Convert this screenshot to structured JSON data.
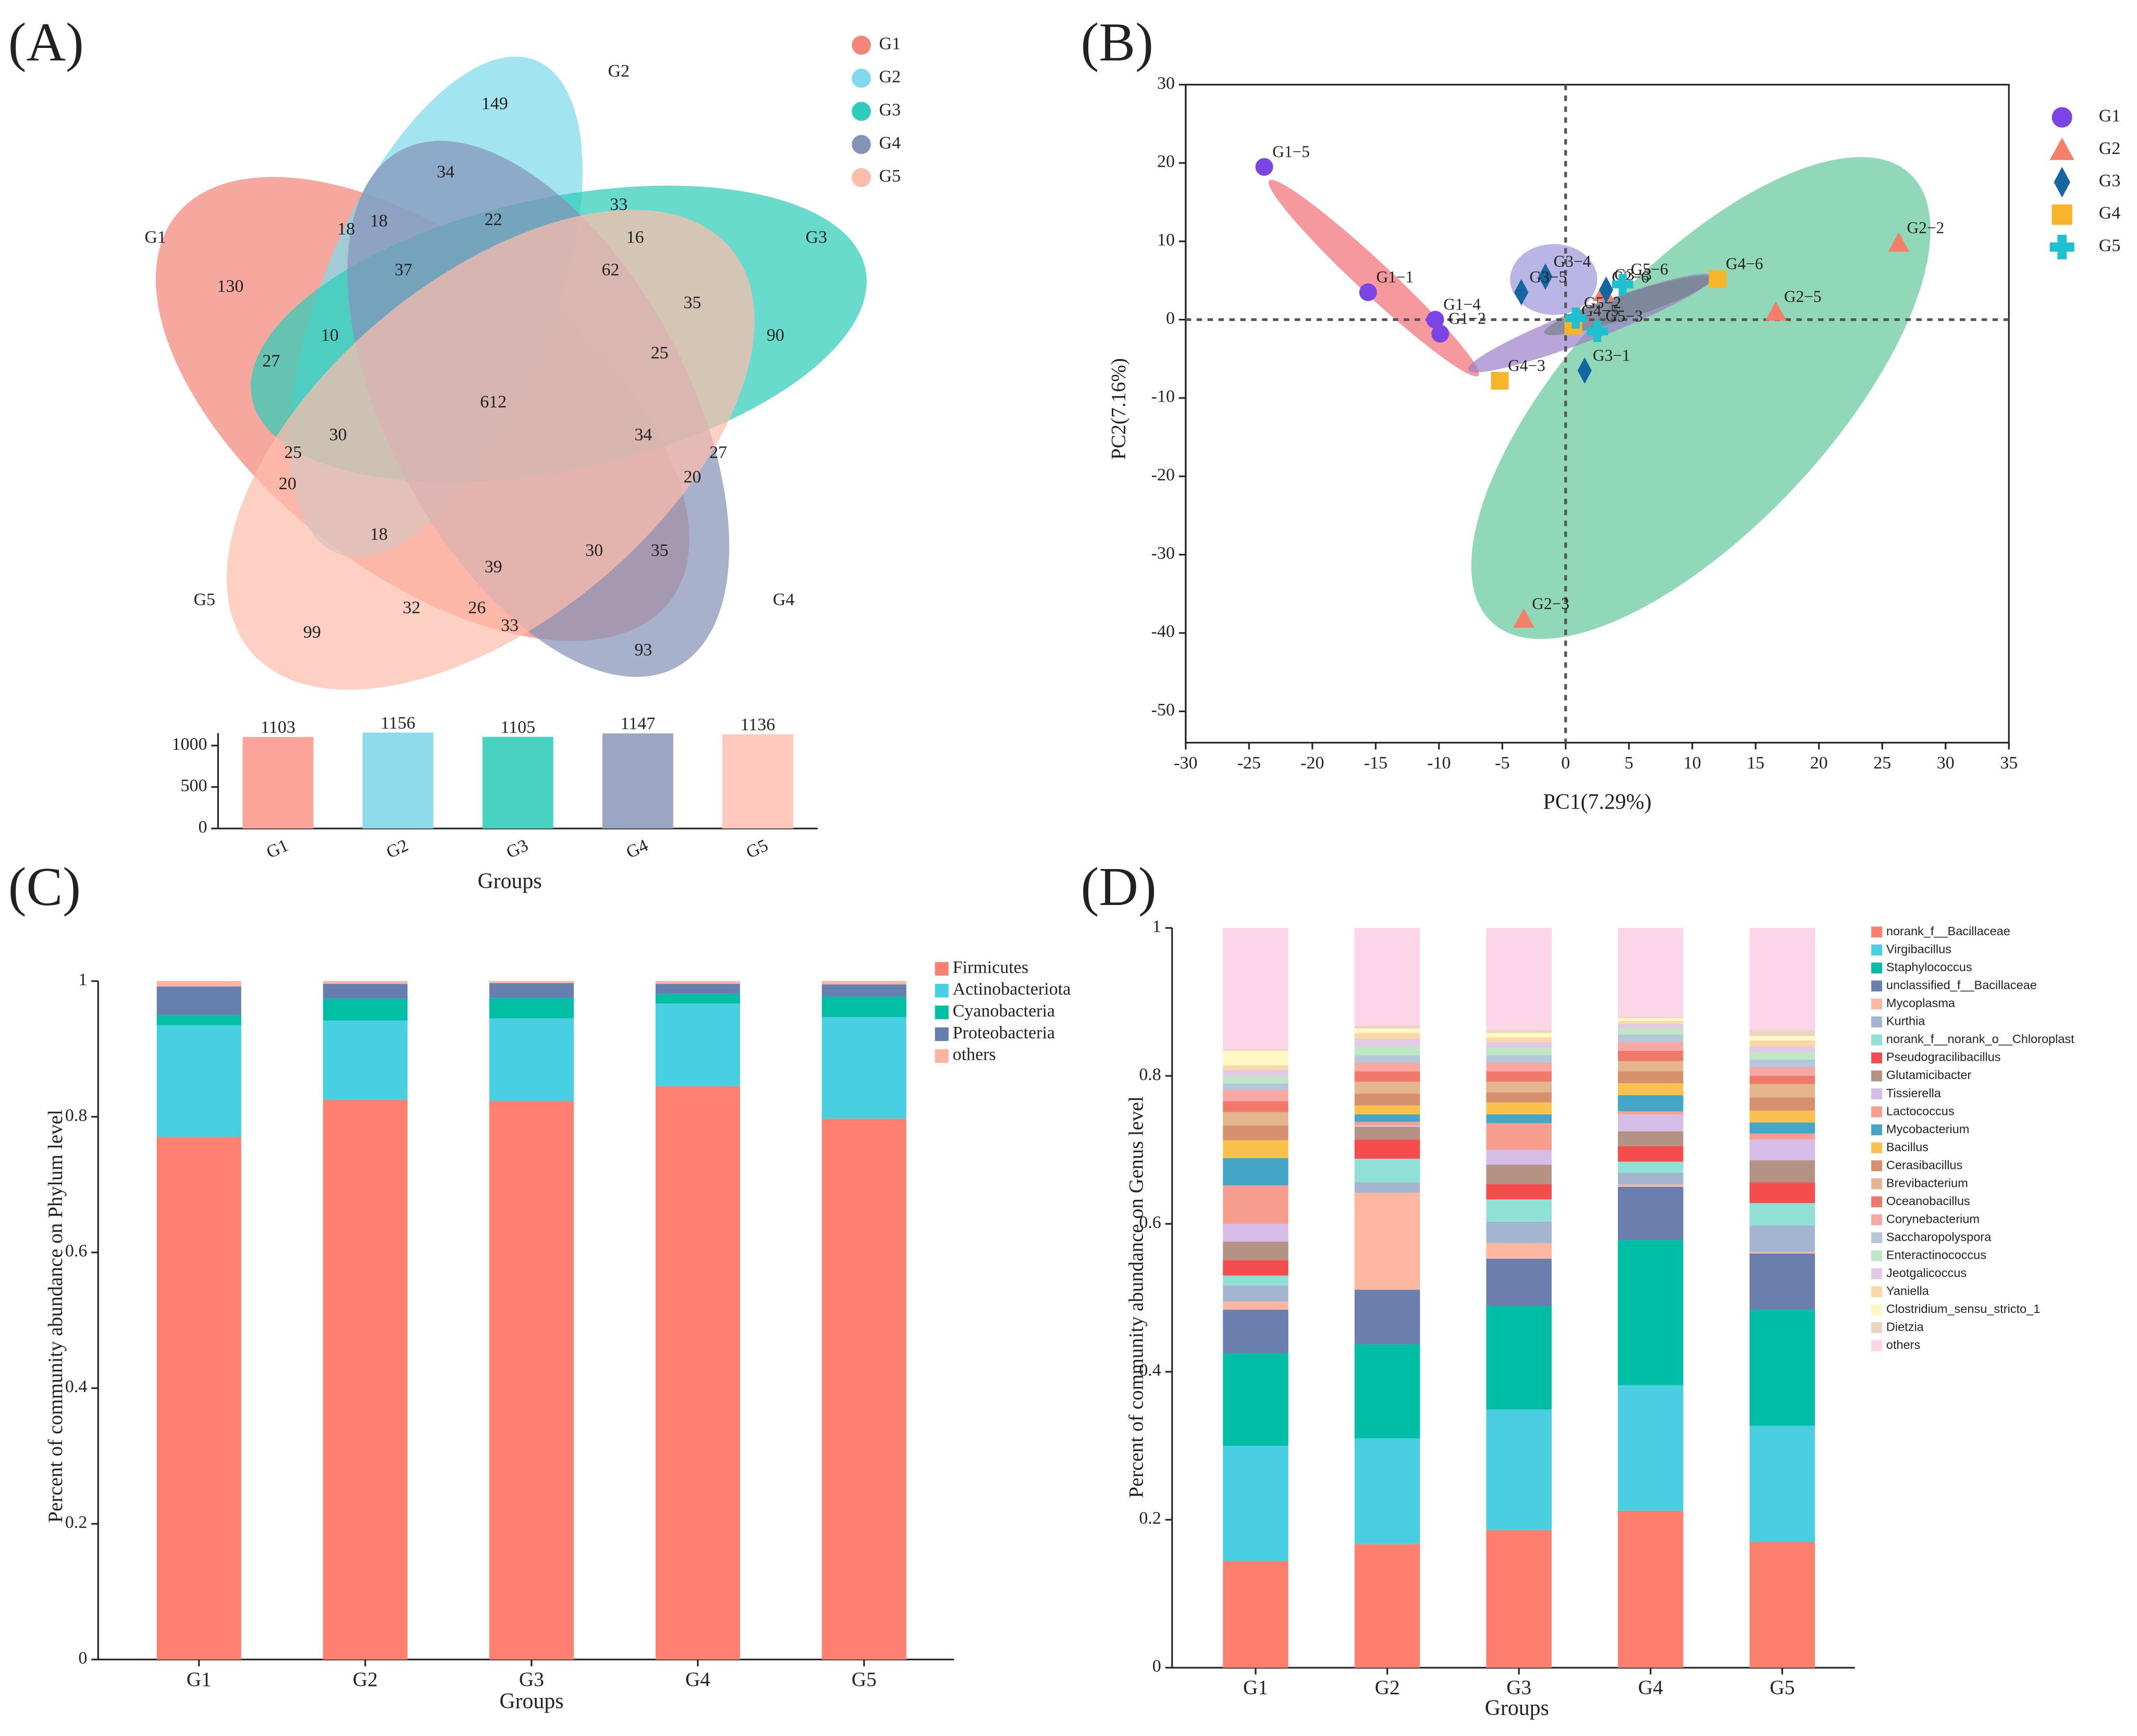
{
  "panel_labels": [
    "(A)",
    "(B)",
    "(C)",
    "(D)"
  ],
  "chart_data": [
    {
      "type": "venn",
      "sets": [
        "G1",
        "G2",
        "G3",
        "G4",
        "G5"
      ],
      "colors": [
        "#f3867a",
        "#80d9ec",
        "#2ecdb9",
        "#8593b8",
        "#fdbdac"
      ],
      "regions": [
        149,
        34,
        18,
        18,
        22,
        33,
        16,
        130,
        37,
        62,
        35,
        90,
        10,
        27,
        25,
        612,
        34,
        30,
        25,
        27,
        20,
        20,
        18,
        39,
        30,
        35,
        32,
        26,
        33,
        99,
        93
      ]
    },
    {
      "type": "bar",
      "categories": [
        "G1",
        "G2",
        "G3",
        "G4",
        "G5"
      ],
      "values": [
        1103,
        1156,
        1105,
        1147,
        1136
      ],
      "colors": [
        "#fda49a",
        "#8ddcec",
        "#47d2c2",
        "#9aa6c4",
        "#fec9bc"
      ],
      "ylim": [
        0,
        1150
      ],
      "yticks": [
        0,
        500,
        1000
      ],
      "xlabel": "Groups"
    },
    {
      "type": "scatter",
      "xlim": [
        -30,
        35
      ],
      "ylim": [
        -54,
        30
      ],
      "xticks": [
        -30,
        -25,
        -20,
        -15,
        -10,
        -5,
        0,
        5,
        10,
        15,
        20,
        25,
        30,
        35
      ],
      "yticks": [
        -50,
        -40,
        -30,
        -20,
        -10,
        0,
        10,
        20,
        30
      ],
      "xlabel": "PC1(7.29%)",
      "ylabel": "PC2(7.16%)",
      "series": [
        {
          "name": "G1",
          "color": "#7b45e6",
          "marker": "circle",
          "x": [
            -23.8,
            -15.6,
            -10.3,
            -9.9
          ],
          "values": [
            19.5,
            3.5,
            0,
            -1.8
          ],
          "labels": [
            "G1−5",
            "G1−1",
            "G1−4",
            "G1−2"
          ]
        },
        {
          "name": "G2",
          "color": "#f4806a",
          "marker": "triangle",
          "x": [
            26.3,
            16.6,
            -3.3,
            3.0
          ],
          "values": [
            9.8,
            1.0,
            -38.2,
            3.5
          ],
          "labels": [
            "G2−2",
            "G2−5",
            "G2−3",
            "G2−6"
          ]
        },
        {
          "name": "G3",
          "color": "#1565a0",
          "marker": "diamond",
          "x": [
            -1.6,
            -3.5,
            1.5,
            3.2
          ],
          "values": [
            5.5,
            3.5,
            -6.5,
            3.8
          ],
          "labels": [
            "G3−4",
            "G3−5",
            "G3−1",
            "G3−3"
          ]
        },
        {
          "name": "G4",
          "color": "#f7b62a",
          "marker": "square",
          "x": [
            12,
            -5.2,
            0.6
          ],
          "values": [
            5.2,
            -7.8,
            -0.8
          ],
          "labels": [
            "G4−6",
            "G4−3",
            "G4−5"
          ]
        },
        {
          "name": "G5",
          "color": "#1ec1cf",
          "marker": "plus",
          "x": [
            4.5,
            2.5,
            0.8
          ],
          "values": [
            4.5,
            -1.5,
            0.2
          ],
          "labels": [
            "G5−6",
            "G5−3",
            "G5−2"
          ]
        }
      ]
    },
    {
      "type": "stacked_bar",
      "categories": [
        "G1",
        "G2",
        "G3",
        "G4",
        "G5"
      ],
      "ylim": [
        0,
        1
      ],
      "yticks": [
        0,
        0.2,
        0.4,
        0.6,
        0.8,
        1
      ],
      "xlabel": "Groups",
      "ylabel": "Percent of community abundance on Phylum level",
      "series": [
        {
          "name": "Firmicutes",
          "color": "#ff8070",
          "values": [
            0.77,
            0.825,
            0.823,
            0.845,
            0.797
          ]
        },
        {
          "name": "Actinobacteriota",
          "color": "#48d0e2",
          "values": [
            0.165,
            0.117,
            0.122,
            0.122,
            0.15
          ]
        },
        {
          "name": "Cyanobacteria",
          "color": "#00bfa5",
          "values": [
            0.015,
            0.032,
            0.03,
            0.014,
            0.03
          ]
        },
        {
          "name": "Proteobacteria",
          "color": "#6580ae",
          "values": [
            0.042,
            0.022,
            0.022,
            0.015,
            0.018
          ]
        },
        {
          "name": "others",
          "color": "#fdb4a0",
          "values": [
            0.008,
            0.004,
            0.003,
            0.004,
            0.005
          ]
        }
      ]
    },
    {
      "type": "stacked_bar",
      "categories": [
        "G1",
        "G2",
        "G3",
        "G4",
        "G5"
      ],
      "ylim": [
        0,
        1
      ],
      "yticks": [
        0,
        0.2,
        0.4,
        0.6,
        0.8,
        1
      ],
      "xlabel": "Groups",
      "ylabel": "Percent of community abundance on Genus level",
      "series": [
        {
          "name": "norank_f__Bacillaceae",
          "color": "#ff7f6e",
          "values": [
            0.144,
            0.167,
            0.186,
            0.212,
            0.17
          ]
        },
        {
          "name": "Virgibacillus",
          "color": "#49cfe1",
          "values": [
            0.156,
            0.143,
            0.163,
            0.17,
            0.157
          ]
        },
        {
          "name": "Staphylococcus",
          "color": "#00bda5",
          "values": [
            0.125,
            0.127,
            0.14,
            0.196,
            0.157
          ]
        },
        {
          "name": "unclassified_f__Bacillaceae",
          "color": "#6a7fae",
          "values": [
            0.059,
            0.074,
            0.064,
            0.072,
            0.076
          ]
        },
        {
          "name": "Mycoplasma",
          "color": "#fdb6a0",
          "values": [
            0.011,
            0.131,
            0.021,
            0.003,
            0.002
          ]
        },
        {
          "name": "Kurthia",
          "color": "#a4b5d1",
          "values": [
            0.022,
            0.014,
            0.029,
            0.016,
            0.036
          ]
        },
        {
          "name": "norank_f__norank_o__Chloroplast",
          "color": "#8ee1d4",
          "values": [
            0.013,
            0.032,
            0.03,
            0.015,
            0.03
          ]
        },
        {
          "name": "Pseudogracilibacillus",
          "color": "#f54d4d",
          "values": [
            0.021,
            0.026,
            0.021,
            0.021,
            0.028
          ]
        },
        {
          "name": "Glutamicibacter",
          "color": "#b59384",
          "values": [
            0.025,
            0.017,
            0.026,
            0.02,
            0.03
          ]
        },
        {
          "name": "Tissierella",
          "color": "#d6bde8",
          "values": [
            0.024,
            0.002,
            0.02,
            0.023,
            0.028
          ]
        },
        {
          "name": "Lactococcus",
          "color": "#f79e8e",
          "values": [
            0.052,
            0.005,
            0.036,
            0.004,
            0.008
          ]
        },
        {
          "name": "Mycobacterium",
          "color": "#46a6c8",
          "values": [
            0.037,
            0.01,
            0.012,
            0.022,
            0.015
          ]
        },
        {
          "name": "Bacillus",
          "color": "#fbc14d",
          "values": [
            0.024,
            0.012,
            0.016,
            0.016,
            0.016
          ]
        },
        {
          "name": "Cerasibacillus",
          "color": "#d7906d",
          "values": [
            0.02,
            0.016,
            0.014,
            0.016,
            0.018
          ]
        },
        {
          "name": "Brevibacterium",
          "color": "#e4b68e",
          "values": [
            0.018,
            0.016,
            0.014,
            0.014,
            0.018
          ]
        },
        {
          "name": "Oceanobacillus",
          "color": "#f1796b",
          "values": [
            0.015,
            0.014,
            0.014,
            0.014,
            0.011
          ]
        },
        {
          "name": "Corynebacterium",
          "color": "#f8a8a4",
          "values": [
            0.015,
            0.012,
            0.012,
            0.012,
            0.012
          ]
        },
        {
          "name": "Saccharopolyspora",
          "color": "#b5c8da",
          "values": [
            0.009,
            0.01,
            0.01,
            0.01,
            0.01
          ]
        },
        {
          "name": "Enteractinococcus",
          "color": "#bfe7c5",
          "values": [
            0.009,
            0.012,
            0.01,
            0.008,
            0.01
          ]
        },
        {
          "name": "Jeotgalicoccus",
          "color": "#e2c9e6",
          "values": [
            0.009,
            0.01,
            0.008,
            0.006,
            0.008
          ]
        },
        {
          "name": "Yaniella",
          "color": "#fad8a5",
          "values": [
            0.006,
            0.008,
            0.006,
            0.004,
            0.008
          ]
        },
        {
          "name": "Clostridium_sensu_stricto_1",
          "color": "#fef8c4",
          "values": [
            0.02,
            0.006,
            0.006,
            0.004,
            0.006
          ]
        },
        {
          "name": "Dietzia",
          "color": "#ebd5c0",
          "values": [
            0.002,
            0.004,
            0.004,
            0.002,
            0.008
          ]
        },
        {
          "name": "others",
          "color": "#fdd5e8",
          "values": [
            0.164,
            0.132,
            0.138,
            0.12,
            0.138
          ]
        }
      ]
    }
  ]
}
